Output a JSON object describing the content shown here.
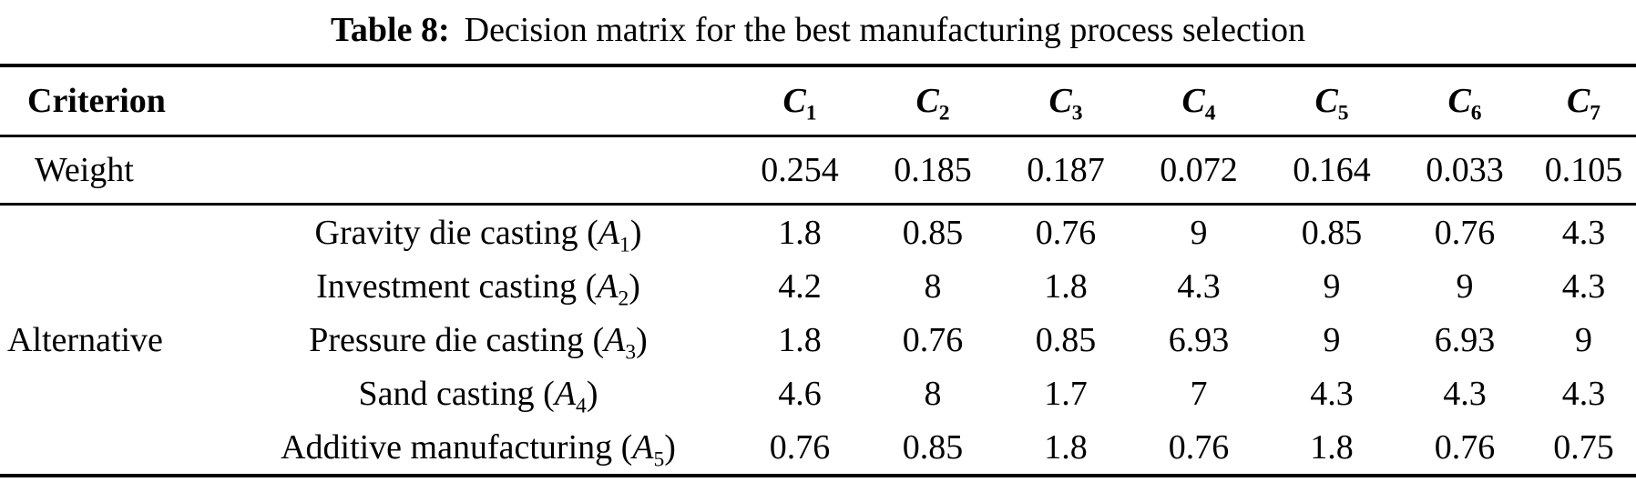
{
  "caption": {
    "label": "Table 8:",
    "text": "Decision matrix for the best manufacturing process selection"
  },
  "table": {
    "corner_header": "Criterion",
    "weight_label": "Weight",
    "alternative_label": "Alternative",
    "criteria": [
      {
        "symbol": "C",
        "sub": "1"
      },
      {
        "symbol": "C",
        "sub": "2"
      },
      {
        "symbol": "C",
        "sub": "3"
      },
      {
        "symbol": "C",
        "sub": "4"
      },
      {
        "symbol": "C",
        "sub": "5"
      },
      {
        "symbol": "C",
        "sub": "6"
      },
      {
        "symbol": "C",
        "sub": "7"
      }
    ],
    "weights": [
      "0.254",
      "0.185",
      "0.187",
      "0.072",
      "0.164",
      "0.033",
      "0.105"
    ],
    "alternatives": [
      {
        "name": "Gravity die casting (",
        "symbol": "A",
        "sub": "1",
        "close": ")",
        "values": [
          "1.8",
          "0.85",
          "0.76",
          "9",
          "0.85",
          "0.76",
          "4.3"
        ]
      },
      {
        "name": "Investment casting (",
        "symbol": "A",
        "sub": "2",
        "close": ")",
        "values": [
          "4.2",
          "8",
          "1.8",
          "4.3",
          "9",
          "9",
          "4.3"
        ]
      },
      {
        "name": "Pressure die casting (",
        "symbol": "A",
        "sub": "3",
        "close": ")",
        "values": [
          "1.8",
          "0.76",
          "0.85",
          "6.93",
          "9",
          "6.93",
          "9"
        ]
      },
      {
        "name": "Sand casting (",
        "symbol": "A",
        "sub": "4",
        "close": ")",
        "values": [
          "4.6",
          "8",
          "1.7",
          "7",
          "4.3",
          "4.3",
          "4.3"
        ]
      },
      {
        "name": "Additive manufacturing (",
        "symbol": "A",
        "sub": "5",
        "close": ")",
        "values": [
          "0.76",
          "0.85",
          "1.8",
          "0.76",
          "1.8",
          "0.76",
          "0.75"
        ]
      }
    ],
    "colors": {
      "text": "#000000",
      "background": "#ffffff",
      "rule": "#000000"
    }
  }
}
